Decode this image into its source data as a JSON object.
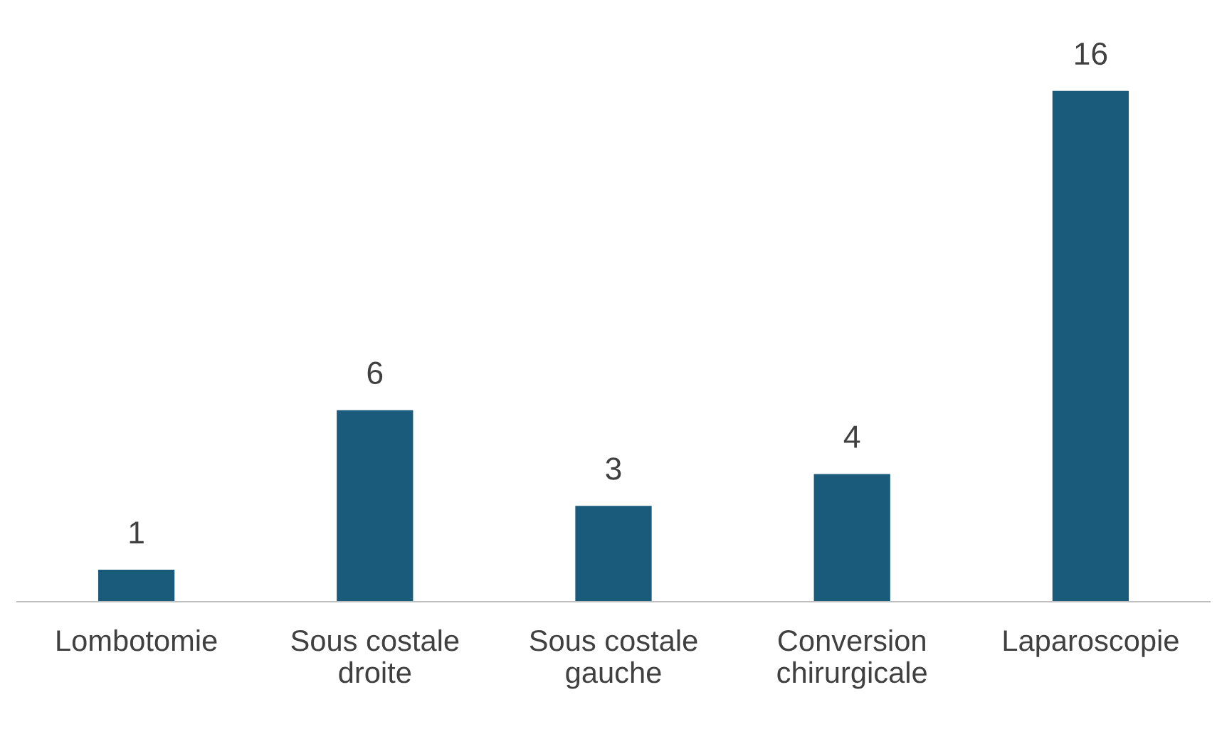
{
  "chart_data": {
    "type": "bar",
    "categories": [
      "Lombotomie",
      "Sous costale\ndroite",
      "Sous costale\ngauche",
      "Conversion\nchirurgicale",
      "Laparoscopie"
    ],
    "values": [
      1,
      6,
      3,
      4,
      16
    ],
    "color": "#1a5a7a",
    "data_labels": true,
    "grid": false,
    "legend": false
  }
}
